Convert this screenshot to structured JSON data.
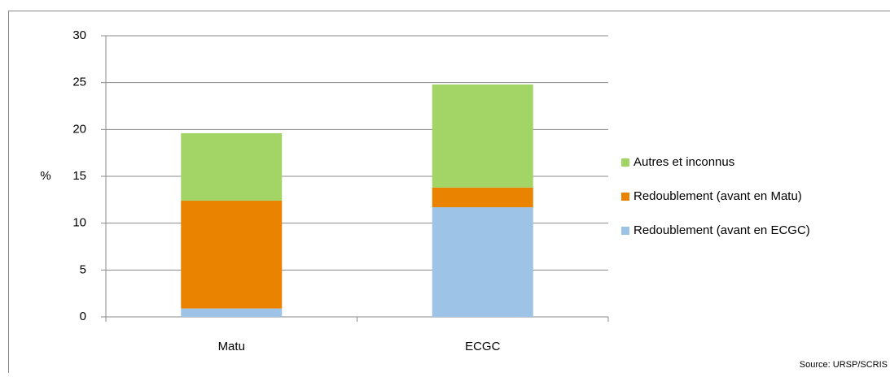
{
  "chart_data": {
    "type": "stacked_bar",
    "y_label": "%",
    "source": "Source: URSP/SCRIS",
    "categories": [
      "Matu",
      "ECGC"
    ],
    "series": [
      {
        "name": "Redoublement (avant en ECGC)",
        "color": "#9dc3e6",
        "values": [
          0.9,
          11.7
        ]
      },
      {
        "name": "Redoublement (avant en Matu)",
        "color": "#e98300",
        "values": [
          11.5,
          2.1
        ]
      },
      {
        "name": "Autres et inconnus",
        "color": "#a2d565",
        "values": [
          7.2,
          11.0
        ]
      }
    ],
    "ylim": [
      0,
      30
    ],
    "yticks": [
      0,
      5,
      10,
      15,
      20,
      25,
      30
    ],
    "grid": true
  }
}
